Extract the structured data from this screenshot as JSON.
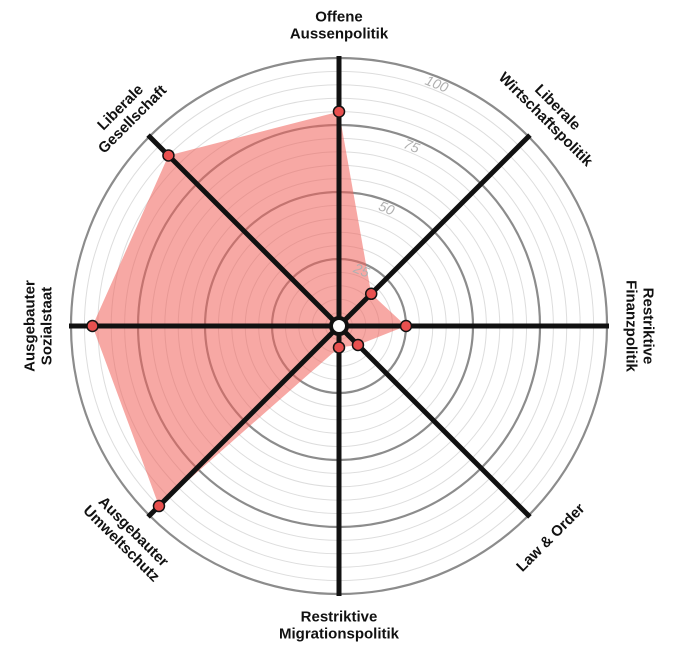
{
  "chart_data": {
    "type": "radar",
    "title": "",
    "axes": [
      {
        "key": "offene-aussenpolitik",
        "label": [
          "Offene",
          "Aussenpolitik"
        ],
        "value": 80
      },
      {
        "key": "liberale-wirtschaftspolitik",
        "label": [
          "Liberale",
          "Wirtschaftspolitik"
        ],
        "value": 17
      },
      {
        "key": "restriktive-finanzpolitik",
        "label": [
          "Restriktive",
          "Finanzpolitik"
        ],
        "value": 25
      },
      {
        "key": "law-and-order",
        "label": [
          "Law & Order"
        ],
        "value": 10
      },
      {
        "key": "restriktive-migrationspolitik",
        "label": [
          "Restriktive",
          "Migrationspolitik"
        ],
        "value": 8
      },
      {
        "key": "ausgebauter-umweltschutz",
        "label": [
          "Ausgebauter",
          "Umweltschutz"
        ],
        "value": 95
      },
      {
        "key": "ausgebauter-sozialstaat",
        "label": [
          "Ausgebauter",
          "Sozialstaat"
        ],
        "value": 92
      },
      {
        "key": "liberale-gesellschaft",
        "label": [
          "Liberale",
          "Gesellschaft"
        ],
        "value": 90
      }
    ],
    "rlim": [
      0,
      100
    ],
    "ticks": [
      25,
      50,
      75,
      100
    ],
    "tick_labels": [
      "25",
      "50",
      "75",
      "100"
    ],
    "minor_step": 5,
    "grid": true,
    "colors": {
      "fill": "#f0605a",
      "point": "#e8504f",
      "axis": "#111111",
      "major_grid": "#8c8c8c",
      "minor_grid": "#dddddd",
      "tick_text": "#b0b0b0"
    }
  }
}
